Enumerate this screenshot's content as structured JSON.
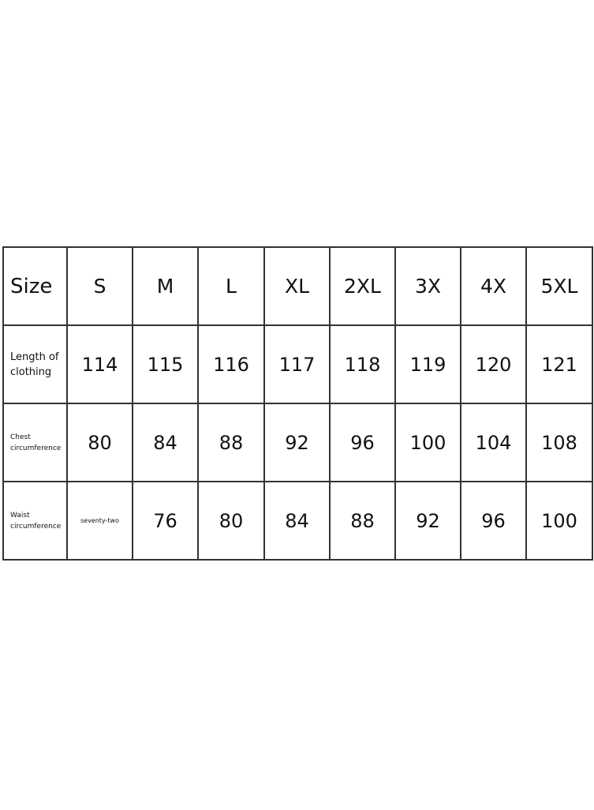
{
  "table": {
    "header": [
      "Size",
      "S",
      "M",
      "L",
      "XL",
      "2XL",
      "3X",
      "4X",
      "5XL"
    ],
    "rows": [
      {
        "label_line1": "Length of",
        "label_line2": "clothing",
        "values": [
          "114",
          "115",
          "116",
          "117",
          "118",
          "119",
          "120",
          "121"
        ]
      },
      {
        "label_line1": "Chest",
        "label_line2": "circumference",
        "values": [
          "80",
          "84",
          "88",
          "92",
          "96",
          "100",
          "104",
          "108"
        ]
      },
      {
        "label_line1": "Waist",
        "label_line2": "circumference",
        "values": [
          "seventy-two",
          "76",
          "80",
          "84",
          "88",
          "92",
          "96",
          "100"
        ]
      }
    ]
  }
}
